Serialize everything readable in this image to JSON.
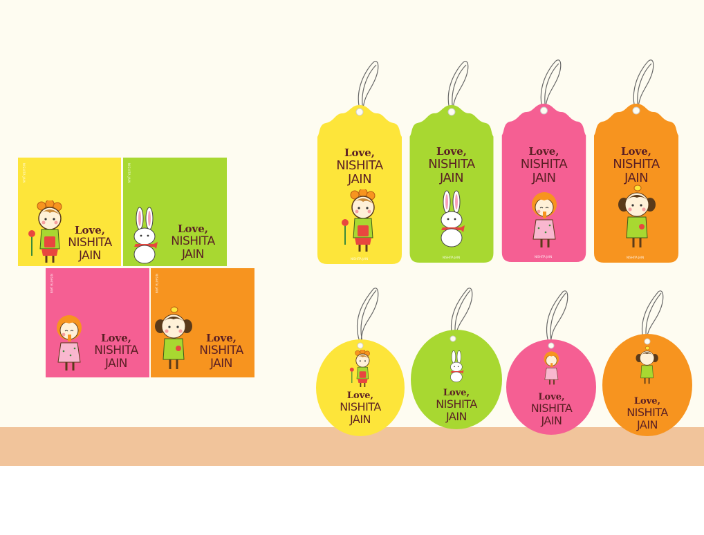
{
  "colors": {
    "yellow": "#fde53a",
    "green": "#a8d831",
    "pink": "#f55f93",
    "orange": "#f7941f",
    "text": "#5a1f24",
    "shelf": "#f1c49b",
    "wall": "#fefcf1"
  },
  "message": {
    "line1": "Love,",
    "line2": "NISHITA",
    "line3": "JAIN"
  },
  "brand_text": "NISHITA JAIN",
  "cards": [
    {
      "color": "yellow",
      "character": "girl-with-flower-icon"
    },
    {
      "color": "green",
      "character": "bunny-icon"
    },
    {
      "color": "pink",
      "character": "girl-with-icecream-icon"
    },
    {
      "color": "orange",
      "character": "girl-with-bird-icon"
    }
  ],
  "scalloped_tags": [
    {
      "color": "yellow",
      "character": "girl-with-flower-icon"
    },
    {
      "color": "green",
      "character": "bunny-icon"
    },
    {
      "color": "pink",
      "character": "girl-with-icecream-icon"
    },
    {
      "color": "orange",
      "character": "girl-with-bird-icon"
    }
  ],
  "oval_tags": [
    {
      "color": "yellow",
      "character": "girl-with-flower-icon"
    },
    {
      "color": "green",
      "character": "bunny-icon"
    },
    {
      "color": "pink",
      "character": "girl-with-icecream-icon"
    },
    {
      "color": "orange",
      "character": "girl-with-bird-icon"
    }
  ]
}
